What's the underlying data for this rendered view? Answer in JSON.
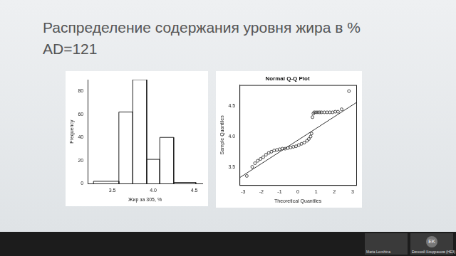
{
  "slide": {
    "title": "Распределение содержания уровня жира в %",
    "subtitle": "AD=121"
  },
  "participants": [
    {
      "name": "Maria Levshina",
      "initials": null
    },
    {
      "name": "Евгений Кондрашов (НЕЗ)",
      "initials": "EK"
    }
  ],
  "chart_data": [
    {
      "type": "histogram",
      "x_label": "Жир за 305, %",
      "y_label": "Frequency",
      "bins": [
        3.27,
        3.58,
        3.75,
        3.92,
        4.08,
        4.25,
        4.52
      ],
      "values": [
        2,
        62,
        90,
        21,
        40,
        1
      ],
      "xlim": [
        3.2,
        4.6
      ],
      "xticks": [
        3.5,
        {
          "value": 4,
          "label": "4.0"
        },
        4.5
      ],
      "ylim": [
        0,
        90
      ],
      "yticks": [
        0,
        20,
        40,
        60,
        80
      ],
      "grid": false
    },
    {
      "type": "scatter",
      "title": "Normal Q-Q Plot",
      "x_label": "Theoretical Quantiles",
      "y_label": "Sample Quantiles",
      "x": [
        -2.8,
        -2.5,
        -2.35,
        -2.2,
        -2.05,
        -1.9,
        -1.75,
        -1.6,
        -1.45,
        -1.3,
        -1.15,
        -1.0,
        -0.85,
        -0.7,
        -0.55,
        -0.4,
        -0.25,
        -0.1,
        0.05,
        0.2,
        0.35,
        0.5,
        0.6,
        0.7,
        0.75,
        0.8,
        0.85,
        0.9,
        1.0,
        1.1,
        1.2,
        1.3,
        1.45,
        1.6,
        1.75,
        1.9,
        2.05,
        2.2,
        2.4,
        2.8
      ],
      "values": [
        3.35,
        3.5,
        3.56,
        3.6,
        3.63,
        3.66,
        3.7,
        3.73,
        3.75,
        3.77,
        3.78,
        3.79,
        3.8,
        3.8,
        3.81,
        3.82,
        3.83,
        3.84,
        3.86,
        3.88,
        3.9,
        3.93,
        3.96,
        4.0,
        4.05,
        4.32,
        4.38,
        4.4,
        4.4,
        4.4,
        4.4,
        4.4,
        4.4,
        4.4,
        4.4,
        4.4,
        4.41,
        4.41,
        4.45,
        4.75
      ],
      "marker": "open_circle",
      "reference_line": {
        "x": [
          -3.2,
          3.2
        ],
        "values": [
          3.32,
          4.56
        ]
      },
      "xlim": [
        -3.2,
        3.2
      ],
      "xticks": [
        -3,
        -2,
        -1,
        0,
        1,
        2,
        3
      ],
      "ylim": [
        3.2,
        4.85
      ],
      "yticks": [
        3.5,
        {
          "value": 4,
          "label": "4.0"
        },
        4.5
      ],
      "grid": false
    }
  ]
}
